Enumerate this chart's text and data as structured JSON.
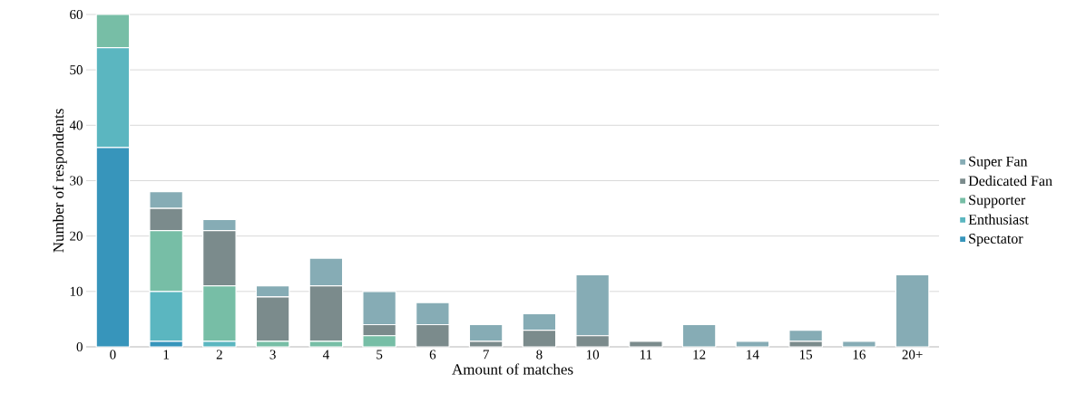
{
  "chart_data": {
    "type": "bar",
    "stacked": true,
    "xlabel": "Amount of matches",
    "ylabel": "Number of respondents",
    "categories": [
      "0",
      "1",
      "2",
      "3",
      "4",
      "5",
      "6",
      "7",
      "8",
      "10",
      "11",
      "12",
      "14",
      "15",
      "16",
      "20+"
    ],
    "series": [
      {
        "name": "Spectator",
        "color": "#3795bb",
        "values": [
          36,
          1,
          0,
          0,
          0,
          0,
          0,
          0,
          0,
          0,
          0,
          0,
          0,
          0,
          0,
          0
        ]
      },
      {
        "name": "Enthusiast",
        "color": "#5bb6c0",
        "values": [
          18,
          9,
          1,
          0,
          0,
          0,
          0,
          0,
          0,
          0,
          0,
          0,
          0,
          0,
          0,
          0
        ]
      },
      {
        "name": "Supporter",
        "color": "#77bea6",
        "values": [
          6,
          11,
          10,
          1,
          1,
          2,
          0,
          0,
          0,
          0,
          0,
          0,
          0,
          0,
          0,
          0
        ]
      },
      {
        "name": "Dedicated Fan",
        "color": "#7b8b8c",
        "values": [
          0,
          4,
          10,
          8,
          10,
          2,
          4,
          1,
          3,
          2,
          1,
          0,
          0,
          1,
          0,
          0
        ]
      },
      {
        "name": "Super Fan",
        "color": "#86acb5",
        "values": [
          0,
          3,
          2,
          2,
          5,
          6,
          4,
          3,
          3,
          11,
          0,
          4,
          1,
          2,
          1,
          13
        ]
      }
    ],
    "ylim": [
      0,
      60
    ],
    "yticks": [
      0,
      10,
      20,
      30,
      40,
      50,
      60
    ],
    "grid": "y",
    "legend": "right"
  }
}
